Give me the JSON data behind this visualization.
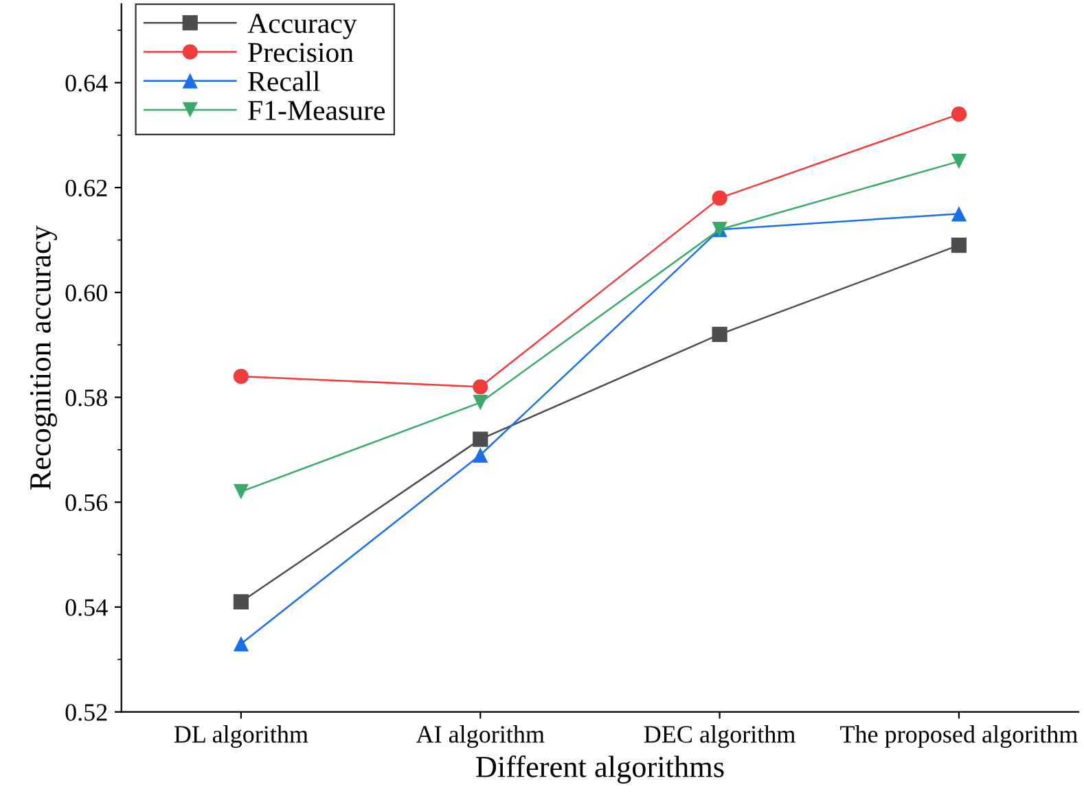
{
  "chart_data": {
    "type": "line",
    "xlabel": "Different algorithms",
    "ylabel": "Recognition accuracy",
    "categories": [
      "DL algorithm",
      "AI algorithm",
      "DEC algorithm",
      "The proposed algorithm"
    ],
    "series": [
      {
        "name": "Accuracy",
        "color": "#4d4d4d",
        "marker": "square",
        "values": [
          0.541,
          0.572,
          0.592,
          0.609
        ]
      },
      {
        "name": "Precision",
        "color": "#f03c3c",
        "marker": "circle",
        "values": [
          0.584,
          0.582,
          0.618,
          0.634
        ]
      },
      {
        "name": "Recall",
        "color": "#1a6ee6",
        "marker": "triangle",
        "values": [
          0.533,
          0.569,
          0.612,
          0.615
        ]
      },
      {
        "name": "F1-Measure",
        "color": "#3aaa6a",
        "marker": "triangle_down",
        "values": [
          0.562,
          0.579,
          0.612,
          0.625
        ]
      }
    ],
    "ylim": [
      0.52,
      0.655
    ],
    "yticks": [
      0.52,
      0.54,
      0.56,
      0.58,
      {
        "value": 0.6,
        "label": "0.60"
      },
      0.62,
      0.64
    ],
    "grid": false,
    "legend": "top left",
    "line_style": "solid"
  }
}
